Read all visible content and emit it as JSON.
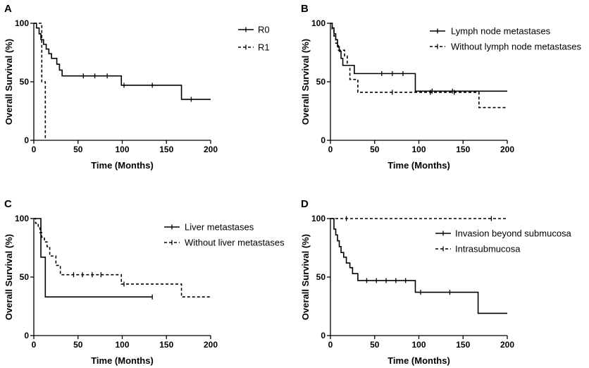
{
  "chart_data": [
    {
      "type": "line",
      "panel": "A",
      "xlabel": "Time (Months)",
      "ylabel": "Overall Survival (%)",
      "xlim": [
        0,
        200
      ],
      "ylim": [
        0,
        100
      ],
      "x_ticks": [
        0,
        50,
        100,
        150,
        200
      ],
      "y_ticks": [
        0,
        50,
        100
      ],
      "series": [
        {
          "name": "R0",
          "steps": [
            [
              0,
              100
            ],
            [
              3,
              96
            ],
            [
              6,
              91
            ],
            [
              8,
              86
            ],
            [
              11,
              82
            ],
            [
              14,
              78
            ],
            [
              17,
              74
            ],
            [
              20,
              70
            ],
            [
              26,
              65
            ],
            [
              29,
              60
            ],
            [
              32,
              55
            ],
            [
              99,
              47
            ],
            [
              167,
              35
            ],
            [
              200,
              35
            ]
          ],
          "censored": [
            [
              56,
              55
            ],
            [
              69,
              55
            ],
            [
              83,
              55
            ],
            [
              102,
              47
            ],
            [
              134,
              47
            ],
            [
              178,
              35
            ]
          ]
        },
        {
          "name": "R1",
          "steps": [
            [
              0,
              100
            ],
            [
              9,
              50
            ],
            [
              13,
              0
            ]
          ],
          "censored": []
        }
      ]
    },
    {
      "type": "line",
      "panel": "B",
      "xlabel": "Time (Months)",
      "ylabel": "Overall Survival (%)",
      "xlim": [
        0,
        200
      ],
      "ylim": [
        0,
        100
      ],
      "x_ticks": [
        0,
        50,
        100,
        150,
        200
      ],
      "y_ticks": [
        0,
        50,
        100
      ],
      "series": [
        {
          "name": "Lymph node metastases",
          "steps": [
            [
              0,
              100
            ],
            [
              2,
              96
            ],
            [
              4,
              91
            ],
            [
              6,
              86
            ],
            [
              8,
              80
            ],
            [
              10,
              76
            ],
            [
              12,
              70
            ],
            [
              14,
              64
            ],
            [
              27,
              57
            ],
            [
              96,
              42
            ],
            [
              200,
              42
            ]
          ],
          "censored": [
            [
              58,
              57
            ],
            [
              70,
              57
            ],
            [
              82,
              57
            ],
            [
              115,
              42
            ],
            [
              138,
              42
            ]
          ]
        },
        {
          "name": "Without lymph node metastases",
          "steps": [
            [
              0,
              100
            ],
            [
              2,
              95
            ],
            [
              4,
              89
            ],
            [
              6,
              83
            ],
            [
              9,
              77
            ],
            [
              16,
              72
            ],
            [
              19,
              64
            ],
            [
              22,
              52
            ],
            [
              31,
              41
            ],
            [
              168,
              28
            ],
            [
              200,
              28
            ]
          ],
          "censored": [
            [
              70,
              41
            ],
            [
              113,
              41
            ],
            [
              140,
              41
            ]
          ]
        }
      ]
    },
    {
      "type": "line",
      "panel": "C",
      "xlabel": "Time (Months)",
      "ylabel": "Overall Survival (%)",
      "xlim": [
        0,
        200
      ],
      "ylim": [
        0,
        100
      ],
      "x_ticks": [
        0,
        50,
        100,
        150,
        200
      ],
      "y_ticks": [
        0,
        50,
        100
      ],
      "series": [
        {
          "name": "Liver metastases",
          "steps": [
            [
              0,
              100
            ],
            [
              8,
              67
            ],
            [
              13,
              33
            ],
            [
              134,
              33
            ]
          ],
          "censored": [
            [
              134,
              33
            ]
          ]
        },
        {
          "name": "Without liver metastases",
          "steps": [
            [
              0,
              100
            ],
            [
              2,
              96
            ],
            [
              5,
              92
            ],
            [
              7,
              88
            ],
            [
              9,
              84
            ],
            [
              12,
              80
            ],
            [
              15,
              76
            ],
            [
              18,
              68
            ],
            [
              25,
              60
            ],
            [
              30,
              52
            ],
            [
              99,
              44
            ],
            [
              167,
              33
            ],
            [
              200,
              33
            ]
          ],
          "censored": [
            [
              45,
              52
            ],
            [
              55,
              52
            ],
            [
              66,
              52
            ],
            [
              76,
              52
            ],
            [
              102,
              44
            ]
          ]
        }
      ]
    },
    {
      "type": "line",
      "panel": "D",
      "xlabel": "Time (Months)",
      "ylabel": "Overall Survival (%)",
      "xlim": [
        0,
        200
      ],
      "ylim": [
        0,
        100
      ],
      "x_ticks": [
        0,
        50,
        100,
        150,
        200
      ],
      "y_ticks": [
        0,
        50,
        100
      ],
      "series": [
        {
          "name": "Invasion beyond submucosa",
          "steps": [
            [
              0,
              100
            ],
            [
              4,
              91
            ],
            [
              6,
              86
            ],
            [
              8,
              81
            ],
            [
              10,
              76
            ],
            [
              12,
              71
            ],
            [
              15,
              67
            ],
            [
              18,
              62
            ],
            [
              22,
              58
            ],
            [
              25,
              53
            ],
            [
              31,
              47
            ],
            [
              96,
              37
            ],
            [
              167,
              19
            ],
            [
              200,
              19
            ]
          ],
          "censored": [
            [
              41,
              47
            ],
            [
              52,
              47
            ],
            [
              63,
              47
            ],
            [
              74,
              47
            ],
            [
              85,
              47
            ],
            [
              102,
              37
            ],
            [
              135,
              37
            ]
          ]
        },
        {
          "name": "Intrasubmucosa",
          "steps": [
            [
              0,
              100
            ],
            [
              200,
              100
            ]
          ],
          "censored": [
            [
              18,
              100
            ],
            [
              182,
              100
            ]
          ]
        }
      ]
    }
  ]
}
